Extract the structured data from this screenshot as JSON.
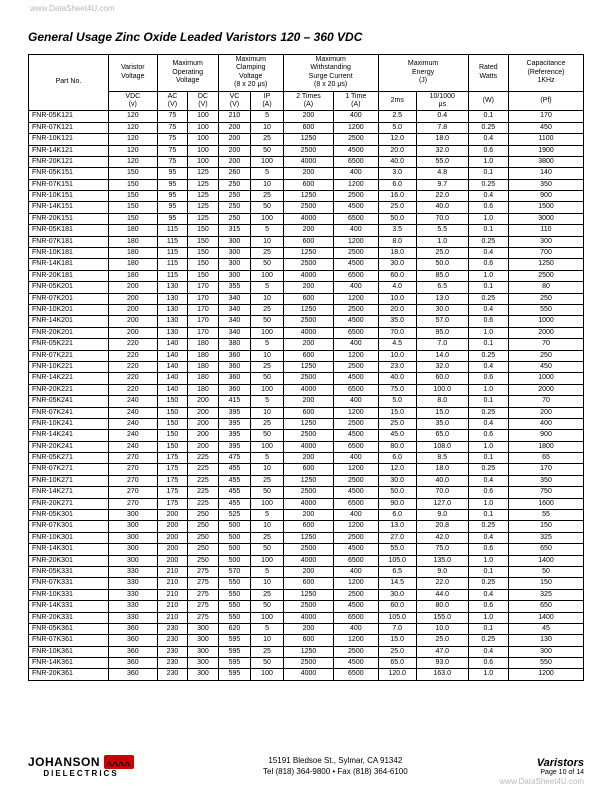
{
  "url_watermark": "www.DataSheet4U.com",
  "title": "General Usage Zinc Oxide Leaded Varistors 120 – 360 VDC",
  "headers_top": [
    "Part No.",
    "Varistor\nVoltage",
    "Maximum\nOperating\nVoltage",
    "Maximum\nClamping\nVoltage\n(8 x 20 μs)",
    "Maximum\nWithstanding\nSurge Current\n(8 x 20 μs)",
    "Maximum\nEnergy\n(J)",
    "Rated\nWatts",
    "Capacitance\n(Reference)\n1KHz"
  ],
  "headers_bot": [
    "VDC\n(v)",
    "AC\n(V)",
    "DC\n(V)",
    "VC\n(V)",
    "IP\n(A)",
    "2 Times\n(A)",
    "1 Time\n(A)",
    "2ms",
    "10/1000\nμs",
    "(W)",
    "(Pf)"
  ],
  "rows": [
    [
      "FNR-05K121",
      "120",
      "75",
      "100",
      "210",
      "5",
      "200",
      "400",
      "2.5",
      "0.4",
      "0.1",
      "170"
    ],
    [
      "FNR-07K121",
      "120",
      "75",
      "100",
      "200",
      "10",
      "600",
      "1200",
      "5.0",
      "7.8",
      "0.25",
      "450"
    ],
    [
      "FNR-10K121",
      "120",
      "75",
      "100",
      "200",
      "25",
      "1250",
      "2500",
      "12.0",
      "18.0",
      "0.4",
      "1100"
    ],
    [
      "FNR-14K121",
      "120",
      "75",
      "100",
      "200",
      "50",
      "2500",
      "4500",
      "20.0",
      "32.0",
      "0.6",
      "1900"
    ],
    [
      "FNR-20K121",
      "120",
      "75",
      "100",
      "200",
      "100",
      "4000",
      "6500",
      "40.0",
      "55.0",
      "1.0",
      "3800"
    ],
    [
      "FNR-05K151",
      "150",
      "95",
      "125",
      "260",
      "5",
      "200",
      "400",
      "3.0",
      "4.8",
      "0.1",
      "140"
    ],
    [
      "FNR-07K151",
      "150",
      "95",
      "125",
      "250",
      "10",
      "600",
      "1200",
      "6.0",
      "9.7",
      "0.25",
      "350"
    ],
    [
      "FNR-10K151",
      "150",
      "95",
      "125",
      "250",
      "25",
      "1250",
      "2500",
      "16.0",
      "22.0",
      "0.4",
      "900"
    ],
    [
      "FNR-14K151",
      "150",
      "95",
      "125",
      "250",
      "50",
      "2500",
      "4500",
      "25.0",
      "40.0",
      "0.6",
      "1500"
    ],
    [
      "FNR-20K151",
      "150",
      "95",
      "125",
      "250",
      "100",
      "4000",
      "6500",
      "50.0",
      "70.0",
      "1.0",
      "3000"
    ],
    [
      "FNR-05K181",
      "180",
      "115",
      "150",
      "315",
      "5",
      "200",
      "400",
      "3.5",
      "5.5",
      "0.1",
      "110"
    ],
    [
      "FNR-07K181",
      "180",
      "115",
      "150",
      "300",
      "10",
      "600",
      "1200",
      "8.0",
      "1.0",
      "0.25",
      "300"
    ],
    [
      "FNR-10K181",
      "180",
      "115",
      "150",
      "300",
      "25",
      "1250",
      "2500",
      "18.0",
      "25.0",
      "0.4",
      "700"
    ],
    [
      "FNR-14K181",
      "180",
      "115",
      "150",
      "300",
      "50",
      "2500",
      "4500",
      "30.0",
      "50.0",
      "0.6",
      "1250"
    ],
    [
      "FNR-20K181",
      "180",
      "115",
      "150",
      "300",
      "100",
      "4000",
      "6500",
      "60.0",
      "85.0",
      "1.0",
      "2500"
    ],
    [
      "FNR-05K201",
      "200",
      "130",
      "170",
      "355",
      "5",
      "200",
      "400",
      "4.0",
      "6.5",
      "0.1",
      "80"
    ],
    [
      "FNR-07K201",
      "200",
      "130",
      "170",
      "340",
      "10",
      "600",
      "1200",
      "10.0",
      "13.0",
      "0.25",
      "250"
    ],
    [
      "FNR-10K201",
      "200",
      "130",
      "170",
      "340",
      "25",
      "1250",
      "2500",
      "20.0",
      "30.0",
      "0.4",
      "550"
    ],
    [
      "FNR-14K201",
      "200",
      "130",
      "170",
      "340",
      "50",
      "2500",
      "4500",
      "35.0",
      "57.0",
      "0.6",
      "1000"
    ],
    [
      "FNR-20K201",
      "200",
      "130",
      "170",
      "340",
      "100",
      "4000",
      "6500",
      "70.0",
      "95.0",
      "1.0",
      "2000"
    ],
    [
      "FNR-05K221",
      "220",
      "140",
      "180",
      "380",
      "5",
      "200",
      "400",
      "4.5",
      "7.0",
      "0.1",
      "70"
    ],
    [
      "FNR-07K221",
      "220",
      "140",
      "180",
      "360",
      "10",
      "600",
      "1200",
      "10.0",
      "14.0",
      "0.25",
      "250"
    ],
    [
      "FNR-10K221",
      "220",
      "140",
      "180",
      "360",
      "25",
      "1250",
      "2500",
      "23.0",
      "32.0",
      "0.4",
      "450"
    ],
    [
      "FNR-14K221",
      "220",
      "140",
      "180",
      "360",
      "50",
      "2500",
      "4500",
      "40.0",
      "60.0",
      "0.6",
      "1000"
    ],
    [
      "FNR-20K221",
      "220",
      "140",
      "180",
      "360",
      "100",
      "4000",
      "6500",
      "75.0",
      "100.0",
      "1.0",
      "2000"
    ],
    [
      "FNR-05K241",
      "240",
      "150",
      "200",
      "415",
      "5",
      "200",
      "400",
      "5.0",
      "8.0",
      "0.1",
      "70"
    ],
    [
      "FNR-07K241",
      "240",
      "150",
      "200",
      "395",
      "10",
      "600",
      "1200",
      "15.0",
      "15.0",
      "0.25",
      "200"
    ],
    [
      "FNR-10K241",
      "240",
      "150",
      "200",
      "395",
      "25",
      "1250",
      "2500",
      "25.0",
      "35.0",
      "0.4",
      "400"
    ],
    [
      "FNR-14K241",
      "240",
      "150",
      "200",
      "395",
      "50",
      "2500",
      "4500",
      "45.0",
      "65.0",
      "0.6",
      "900"
    ],
    [
      "FNR-20K241",
      "240",
      "150",
      "200",
      "395",
      "100",
      "4000",
      "6500",
      "80.0",
      "108.0",
      "1.0",
      "1800"
    ],
    [
      "FNR-05K271",
      "270",
      "175",
      "225",
      "475",
      "5",
      "200",
      "400",
      "6.0",
      "8.5",
      "0.1",
      "65"
    ],
    [
      "FNR-07K271",
      "270",
      "175",
      "225",
      "455",
      "10",
      "600",
      "1200",
      "12.0",
      "18.0",
      "0.25",
      "170"
    ],
    [
      "FNR-10K271",
      "270",
      "175",
      "225",
      "455",
      "25",
      "1250",
      "2500",
      "30.0",
      "40.0",
      "0.4",
      "350"
    ],
    [
      "FNR-14K271",
      "270",
      "175",
      "225",
      "455",
      "50",
      "2500",
      "4500",
      "50.0",
      "70.0",
      "0.6",
      "750"
    ],
    [
      "FNR-20K271",
      "270",
      "175",
      "225",
      "455",
      "100",
      "4000",
      "6500",
      "90.0",
      "127.0",
      "1.0",
      "1600"
    ],
    [
      "FNR-05K301",
      "300",
      "200",
      "250",
      "525",
      "5",
      "200",
      "400",
      "6.0",
      "9.0",
      "0.1",
      "55"
    ],
    [
      "FNR-07K301",
      "300",
      "200",
      "250",
      "500",
      "10",
      "600",
      "1200",
      "13.0",
      "20.8",
      "0.25",
      "150"
    ],
    [
      "FNR-10K301",
      "300",
      "200",
      "250",
      "500",
      "25",
      "1250",
      "2500",
      "27.0",
      "42.0",
      "0.4",
      "325"
    ],
    [
      "FNR-14K301",
      "300",
      "200",
      "250",
      "500",
      "50",
      "2500",
      "4500",
      "55.0",
      "75.0",
      "0.6",
      "650"
    ],
    [
      "FNR-20K301",
      "300",
      "200",
      "250",
      "500",
      "100",
      "4000",
      "6500",
      "105.0",
      "135.0",
      "1.0",
      "1400"
    ],
    [
      "FNR-05K331",
      "330",
      "210",
      "275",
      "570",
      "5",
      "200",
      "400",
      "6.5",
      "9.0",
      "0.1",
      "50"
    ],
    [
      "FNR-07K331",
      "330",
      "210",
      "275",
      "550",
      "10",
      "600",
      "1200",
      "14.5",
      "22.0",
      "0.25",
      "150"
    ],
    [
      "FNR-10K331",
      "330",
      "210",
      "275",
      "550",
      "25",
      "1250",
      "2500",
      "30.0",
      "44.0",
      "0.4",
      "325"
    ],
    [
      "FNR-14K331",
      "330",
      "210",
      "275",
      "550",
      "50",
      "2500",
      "4500",
      "60.0",
      "80.0",
      "0.6",
      "650"
    ],
    [
      "FNR-20K331",
      "330",
      "210",
      "275",
      "550",
      "100",
      "4000",
      "6500",
      "105.0",
      "155.0",
      "1.0",
      "1400"
    ],
    [
      "FNR-05K361",
      "360",
      "230",
      "300",
      "620",
      "5",
      "200",
      "400",
      "7.0",
      "10.0",
      "0.1",
      "45"
    ],
    [
      "FNR-07K361",
      "360",
      "230",
      "300",
      "595",
      "10",
      "600",
      "1200",
      "15.0",
      "25.0",
      "0.25",
      "130"
    ],
    [
      "FNR-10K361",
      "360",
      "230",
      "300",
      "595",
      "25",
      "1250",
      "2500",
      "25.0",
      "47.0",
      "0.4",
      "300"
    ],
    [
      "FNR-14K361",
      "360",
      "230",
      "300",
      "595",
      "50",
      "2500",
      "4500",
      "65.0",
      "93.0",
      "0.6",
      "550"
    ],
    [
      "FNR-20K361",
      "360",
      "230",
      "300",
      "595",
      "100",
      "4000",
      "6500",
      "120.0",
      "163.0",
      "1.0",
      "1200"
    ]
  ],
  "footer": {
    "logo_top": "JOHANSON",
    "logo_sub": "DIELECTRICS",
    "addr1": "15191 Bledsoe St., Sylmar, CA 91342",
    "addr2": "Tel (818) 364-9800 • Fax (818) 364-6100",
    "right_big": "Varistors",
    "right_small": "Page 10 of 14"
  }
}
